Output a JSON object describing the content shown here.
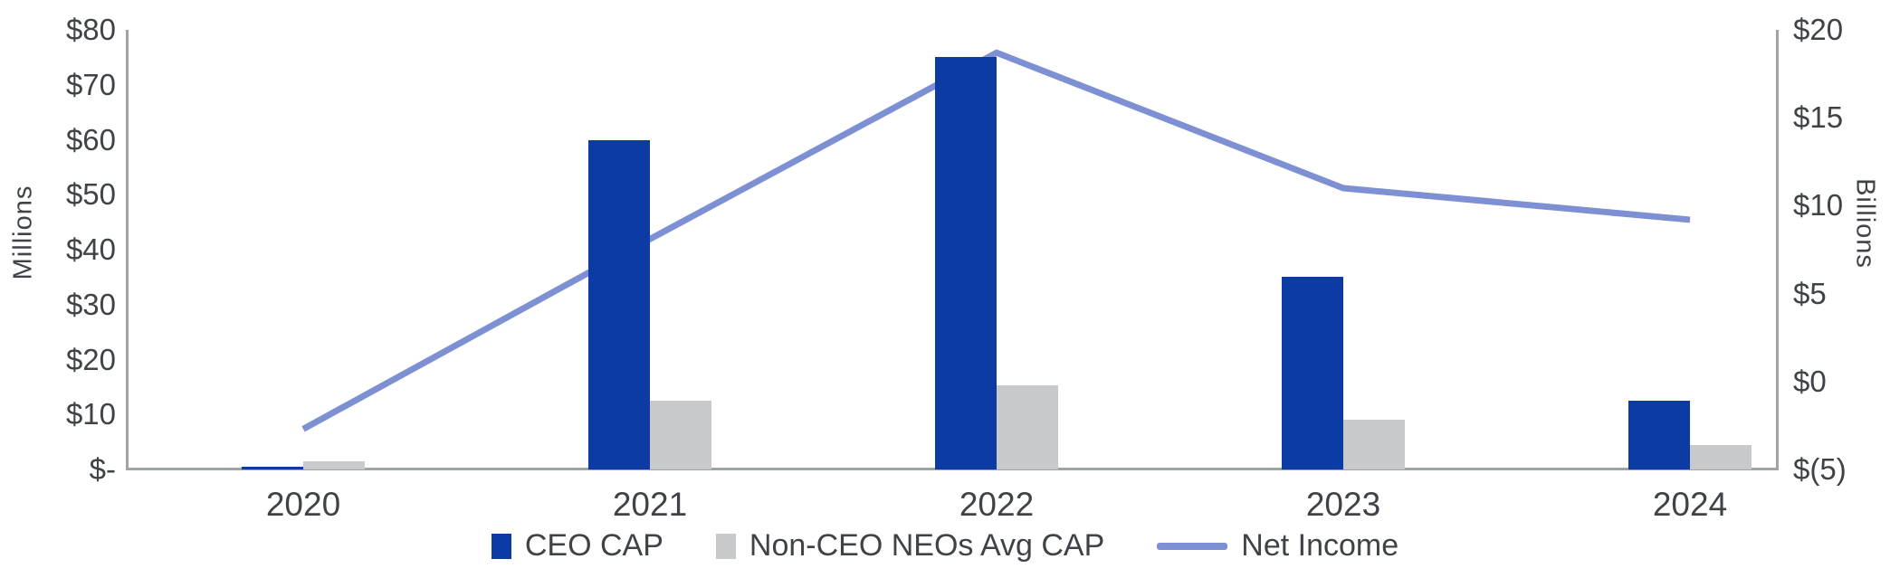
{
  "chart_data": {
    "type": "bar",
    "subtype": "combo-bar-line-dual-axis",
    "categories": [
      "2020",
      "2021",
      "2022",
      "2023",
      "2024"
    ],
    "series": [
      {
        "name": "CEO CAP",
        "type": "bar",
        "axis": "left",
        "color": "#0c3ba4",
        "values": [
          0.5,
          60,
          75,
          35,
          12.5
        ]
      },
      {
        "name": "Non-CEO NEOs Avg CAP",
        "type": "bar",
        "axis": "left",
        "color": "#c8c9cb",
        "values": [
          1.5,
          12.5,
          15.3,
          9,
          4.5
        ]
      },
      {
        "name": "Net Income",
        "type": "line",
        "axis": "right",
        "color": "#7e90d4",
        "values": [
          -2.7,
          8.1,
          18.7,
          11,
          9.2
        ]
      }
    ],
    "left_axis": {
      "title": "Millions",
      "range": [
        0,
        80
      ],
      "ticks": [
        "$-",
        "$10",
        "$20",
        "$30",
        "$40",
        "$50",
        "$60",
        "$70",
        "$80"
      ]
    },
    "right_axis": {
      "title": "Billions",
      "range": [
        -5,
        20
      ],
      "ticks": [
        "$(5)",
        "$0",
        "$5",
        "$10",
        "$15",
        "$20"
      ]
    },
    "grid": "off",
    "legend_position": "bottom-center",
    "colors": {
      "text": "#3f4347",
      "axis_line": "#a0a3a6",
      "background": "#ffffff"
    }
  }
}
